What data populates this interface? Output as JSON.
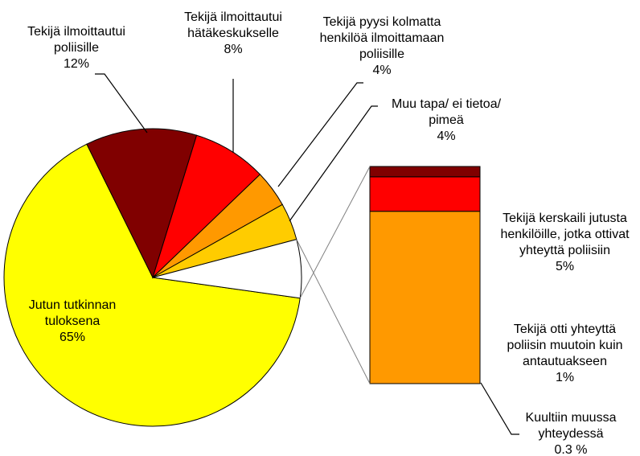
{
  "chart_data": {
    "type": "pie-of-bar",
    "pie": {
      "categories": [
        "Jutun tutkinnan tuloksena",
        "Tekijä ilmoittautui poliisille",
        "Tekijä ilmoittautui hätäkeskukselle",
        "Tekijä pyysi kolmatta henkilöä ilmoittamaan poliisille",
        "Muu tapa/ ei tietoa/ pimeä"
      ],
      "values": [
        65,
        12,
        8,
        4,
        4
      ],
      "value_labels": [
        "65%",
        "12%",
        "8%",
        "4%",
        "4%"
      ],
      "colors": [
        "#ffff00",
        "#800000",
        "#ff0000",
        "#ff9900",
        "#ffcc00"
      ]
    },
    "bar": {
      "categories": [
        "Tekijä kerskaili jutusta henkilöille, jotka ottivat yhteyttä poliisiin",
        "Tekijä otti yhteyttä poliisin muutoin kuin antautuakseen",
        "Kuultiin muussa yhteydessä"
      ],
      "values": [
        5,
        1,
        0.3
      ],
      "value_labels": [
        "5%",
        "1%",
        "0.3 %"
      ],
      "colors": [
        "#ff9900",
        "#ff0000",
        "#800000"
      ]
    }
  }
}
